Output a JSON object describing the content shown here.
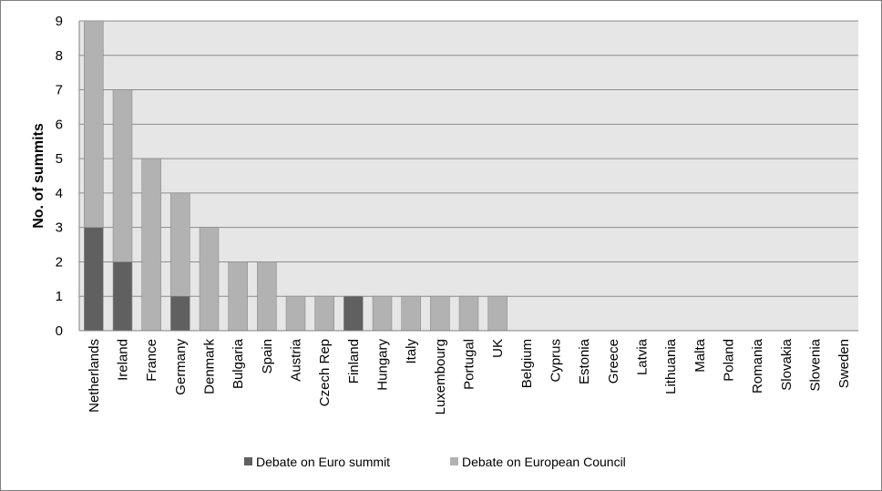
{
  "chart_data": {
    "type": "bar",
    "stacked": true,
    "ylabel": "No. of summits",
    "xlabel": "",
    "ylim": [
      0,
      9
    ],
    "yticks": [
      0,
      1,
      2,
      3,
      4,
      5,
      6,
      7,
      8,
      9
    ],
    "grid": true,
    "legend_position": "bottom",
    "categories": [
      "Netherlands",
      "Ireland",
      "France",
      "Germany",
      "Denmark",
      "Bulgaria",
      "Spain",
      "Austria",
      "Czech Rep",
      "Finland",
      "Hungary",
      "Italy",
      "Luxembourg",
      "Portugal",
      "UK",
      "Belgium",
      "Cyprus",
      "Estonia",
      "Greece",
      "Latvia",
      "Lithuania",
      "Malta",
      "Poland",
      "Romania",
      "Slovakia",
      "Slovenia",
      "Sweden"
    ],
    "series": [
      {
        "name": "Debate on Euro summit",
        "color": "#606060",
        "values": [
          3,
          2,
          0,
          1,
          0,
          0,
          0,
          0,
          0,
          1,
          0,
          0,
          0,
          0,
          0,
          0,
          0,
          0,
          0,
          0,
          0,
          0,
          0,
          0,
          0,
          0,
          0
        ]
      },
      {
        "name": "Debate on European Council",
        "color": "#b2b2b2",
        "values": [
          6,
          5,
          5,
          3,
          3,
          2,
          2,
          1,
          1,
          0,
          1,
          1,
          1,
          1,
          1,
          0,
          0,
          0,
          0,
          0,
          0,
          0,
          0,
          0,
          0,
          0,
          0
        ]
      }
    ]
  }
}
